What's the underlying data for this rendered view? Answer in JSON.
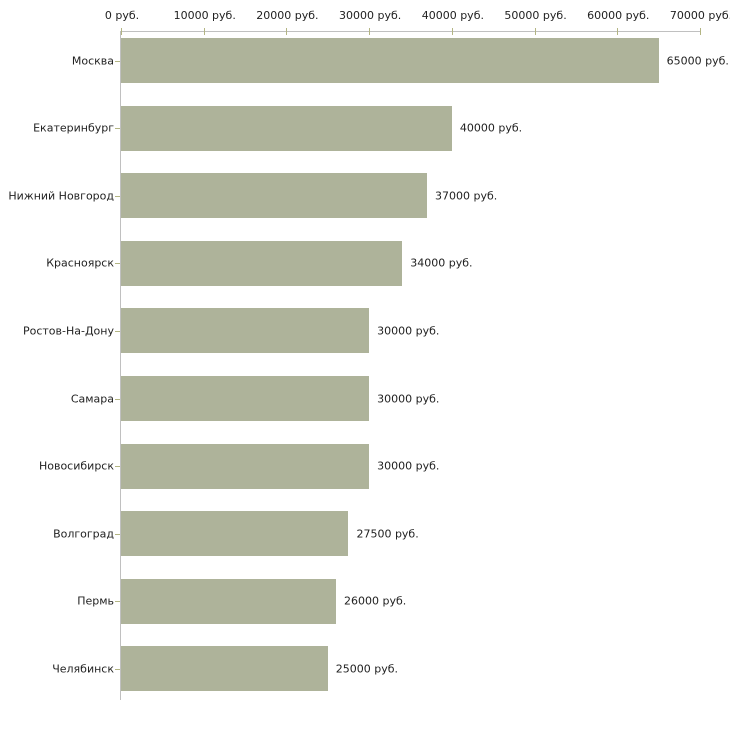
{
  "chart_data": {
    "type": "bar",
    "orientation": "horizontal",
    "unit": "руб.",
    "categories": [
      "Москва",
      "Екатеринбург",
      "Нижний Новгород",
      "Красноярск",
      "Ростов-На-Дону",
      "Самара",
      "Новосибирск",
      "Волгоград",
      "Пермь",
      "Челябинск"
    ],
    "values": [
      65000,
      40000,
      37000,
      34000,
      30000,
      30000,
      30000,
      27500,
      26000,
      25000
    ],
    "value_labels": [
      "65000 руб.",
      "40000 руб.",
      "37000 руб.",
      "34000 руб.",
      "30000 руб.",
      "30000 руб.",
      "30000 руб.",
      "27500 руб.",
      "26000 руб.",
      "25000 руб."
    ],
    "x_axis": {
      "min": 0,
      "max": 70000,
      "ticks": [
        {
          "value": 0,
          "label": "0 руб."
        },
        {
          "value": 10000,
          "label": "10000 руб."
        },
        {
          "value": 20000,
          "label": "20000 руб."
        },
        {
          "value": 30000,
          "label": "30000 руб."
        },
        {
          "value": 40000,
          "label": "40000 руб."
        },
        {
          "value": 50000,
          "label": "50000 руб."
        },
        {
          "value": 60000,
          "label": "60000 руб."
        },
        {
          "value": 70000,
          "label": "70000 руб."
        }
      ],
      "position": "top"
    },
    "xlabel": "",
    "ylabel": "",
    "grid": false,
    "legend": null,
    "colors": {
      "bar": "#aeb39a",
      "axis_line": "#c0c0c0",
      "tick_mark": "#b3b583",
      "text": "#222222",
      "background": "#ffffff"
    }
  }
}
